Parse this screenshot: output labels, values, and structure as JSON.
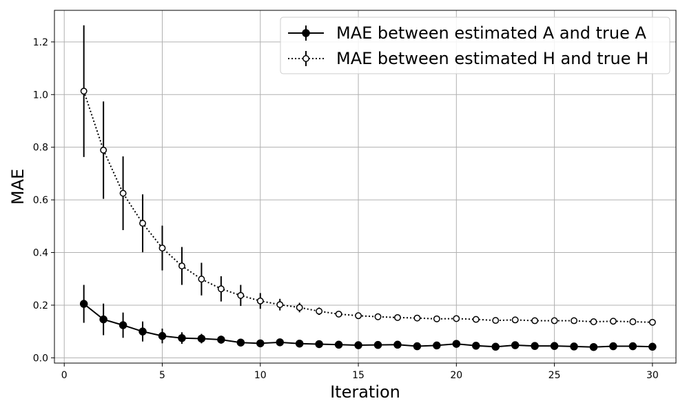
{
  "chart_data": {
    "type": "line",
    "title": "",
    "xlabel": "Iteration",
    "ylabel": "MAE",
    "xlim": [
      -0.5,
      31.2
    ],
    "ylim": [
      -0.02,
      1.32
    ],
    "x_ticks": [
      0,
      5,
      10,
      15,
      20,
      25,
      30
    ],
    "y_ticks": [
      0.0,
      0.2,
      0.4,
      0.6,
      0.8,
      1.0,
      1.2
    ],
    "x_tick_labels": [
      "0",
      "5",
      "10",
      "15",
      "20",
      "25",
      "30"
    ],
    "y_tick_labels": [
      "0.0",
      "0.2",
      "0.4",
      "0.6",
      "0.8",
      "1.0",
      "1.2"
    ],
    "grid": true,
    "legend_position": "top-right",
    "x": [
      1,
      2,
      3,
      4,
      5,
      6,
      7,
      8,
      9,
      10,
      11,
      12,
      13,
      14,
      15,
      16,
      17,
      18,
      19,
      20,
      21,
      22,
      23,
      24,
      25,
      26,
      27,
      28,
      29,
      30
    ],
    "series": [
      {
        "name": "MAE between estimated A and true A",
        "style": "solid",
        "marker": "filled-circle",
        "color": "#000000",
        "values": [
          0.205,
          0.146,
          0.124,
          0.1,
          0.083,
          0.075,
          0.073,
          0.069,
          0.058,
          0.055,
          0.059,
          0.054,
          0.052,
          0.05,
          0.048,
          0.049,
          0.05,
          0.044,
          0.047,
          0.053,
          0.046,
          0.042,
          0.048,
          0.045,
          0.045,
          0.043,
          0.041,
          0.044,
          0.044,
          0.042
        ],
        "errors": [
          0.072,
          0.06,
          0.048,
          0.038,
          0.028,
          0.022,
          0.018,
          0.015,
          0.011,
          0.01,
          0.009,
          0.008,
          0.007,
          0.006,
          0.006,
          0.005,
          0.005,
          0.005,
          0.005,
          0.005,
          0.005,
          0.004,
          0.004,
          0.004,
          0.004,
          0.004,
          0.004,
          0.004,
          0.004,
          0.004
        ]
      },
      {
        "name": "MAE between estimated H and true H",
        "style": "dotted",
        "marker": "open-circle",
        "color": "#000000",
        "values": [
          1.013,
          0.789,
          0.625,
          0.511,
          0.417,
          0.349,
          0.299,
          0.262,
          0.237,
          0.216,
          0.202,
          0.191,
          0.177,
          0.166,
          0.16,
          0.156,
          0.153,
          0.151,
          0.148,
          0.149,
          0.146,
          0.142,
          0.144,
          0.141,
          0.141,
          0.141,
          0.137,
          0.139,
          0.137,
          0.135
        ],
        "errors": [
          0.25,
          0.185,
          0.14,
          0.11,
          0.085,
          0.072,
          0.062,
          0.048,
          0.04,
          0.03,
          0.022,
          0.018,
          0.014,
          0.012,
          0.01,
          0.009,
          0.008,
          0.008,
          0.007,
          0.007,
          0.007,
          0.006,
          0.006,
          0.006,
          0.006,
          0.006,
          0.006,
          0.006,
          0.006,
          0.006
        ]
      }
    ]
  }
}
